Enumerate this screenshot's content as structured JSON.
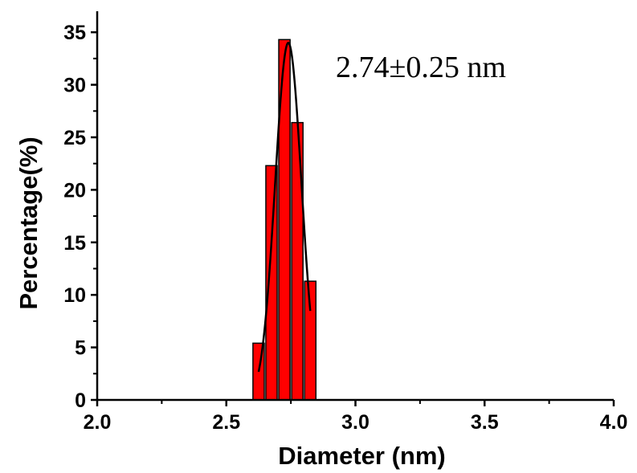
{
  "chart_data": {
    "type": "bar",
    "xlabel": "Diameter (nm)",
    "ylabel": "Percentage(%)",
    "xlim": [
      2.0,
      4.0
    ],
    "ylim": [
      0,
      37
    ],
    "x_ticks": [
      "2.0",
      "2.5",
      "3.0",
      "3.5",
      "4.0"
    ],
    "x_tick_values": [
      2.0,
      2.5,
      3.0,
      3.5,
      4.0
    ],
    "y_ticks": [
      "0",
      "5",
      "10",
      "15",
      "20",
      "25",
      "30",
      "35"
    ],
    "y_tick_values": [
      0,
      5,
      10,
      15,
      20,
      25,
      30,
      35
    ],
    "bin_width": 0.05,
    "bars": [
      {
        "x": 2.625,
        "value": 5.4
      },
      {
        "x": 2.675,
        "value": 22.3
      },
      {
        "x": 2.725,
        "value": 34.3
      },
      {
        "x": 2.775,
        "value": 26.4
      },
      {
        "x": 2.825,
        "value": 11.3
      }
    ],
    "fit": {
      "type": "gaussian",
      "center": 2.74,
      "sigma": 0.051,
      "amplitude": 34.0,
      "x_range": [
        2.625,
        2.825
      ]
    },
    "annotation": "2.74±0.25 nm",
    "bar_color": "#ff0000",
    "bar_edge_color": "#000000",
    "fit_color": "#000000",
    "grid": false,
    "legend": "none"
  }
}
